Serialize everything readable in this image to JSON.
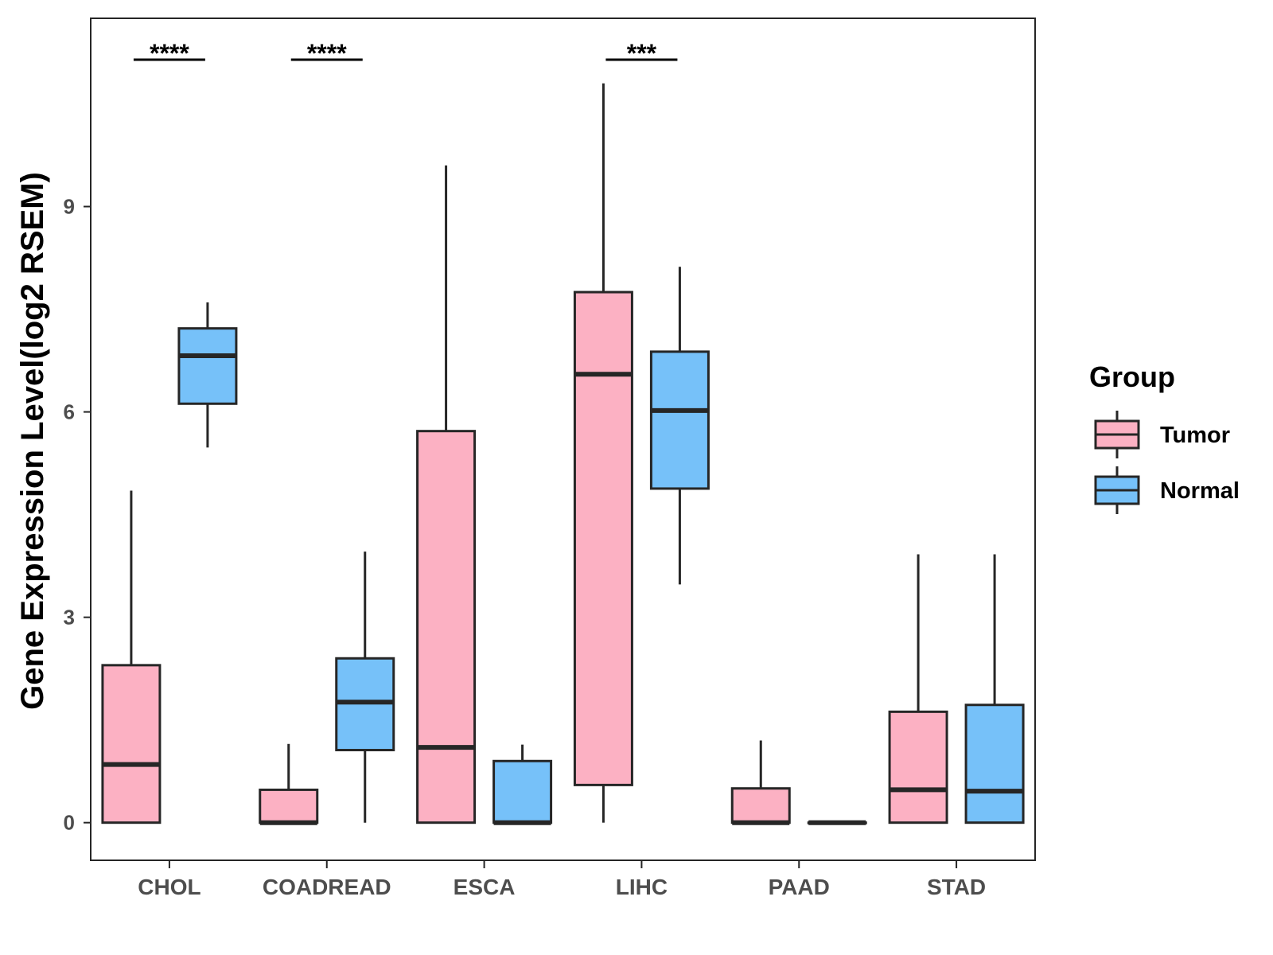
{
  "chart_data": {
    "type": "boxplot",
    "title": "",
    "xlabel": "",
    "ylabel": "Gene Expression Level(log2 RSEM)",
    "ylim": [
      -0.55,
      11.75
    ],
    "yticks": [
      0,
      3,
      6,
      9
    ],
    "grid": false,
    "categories": [
      "CHOL",
      "COADREAD",
      "ESCA",
      "LIHC",
      "PAAD",
      "STAD"
    ],
    "legend": {
      "title": "Group",
      "position": "right",
      "entries": [
        "Tumor",
        "Normal"
      ]
    },
    "colors": {
      "Tumor": "#fcb1c3",
      "Normal": "#76c1f9",
      "stroke": "#262626"
    },
    "series": [
      {
        "name": "Tumor",
        "boxes": [
          {
            "min": 0,
            "q1": 0,
            "median": 0.85,
            "q3": 2.3,
            "max": 4.85
          },
          {
            "min": 0,
            "q1": 0,
            "median": 0.0,
            "q3": 0.48,
            "max": 1.15
          },
          {
            "min": 0,
            "q1": 0,
            "median": 1.1,
            "q3": 5.72,
            "max": 9.6
          },
          {
            "min": 0,
            "q1": 0.55,
            "median": 6.55,
            "q3": 7.75,
            "max": 10.8
          },
          {
            "min": 0,
            "q1": 0,
            "median": 0.0,
            "q3": 0.5,
            "max": 1.2
          },
          {
            "min": 0,
            "q1": 0,
            "median": 0.48,
            "q3": 1.62,
            "max": 3.92
          }
        ]
      },
      {
        "name": "Normal",
        "boxes": [
          {
            "min": 5.48,
            "q1": 6.12,
            "median": 6.82,
            "q3": 7.22,
            "max": 7.6
          },
          {
            "min": 0,
            "q1": 1.06,
            "median": 1.76,
            "q3": 2.4,
            "max": 3.96
          },
          {
            "min": 0,
            "q1": 0,
            "median": 0.0,
            "q3": 0.9,
            "max": 1.14
          },
          {
            "min": 3.48,
            "q1": 4.88,
            "median": 6.02,
            "q3": 6.88,
            "max": 8.12
          },
          {
            "min": 0,
            "q1": 0,
            "median": 0.0,
            "q3": 0.0,
            "max": 0.0
          },
          {
            "min": 0,
            "q1": 0,
            "median": 0.46,
            "q3": 1.72,
            "max": 3.92
          }
        ]
      }
    ],
    "significance": [
      {
        "category": "CHOL",
        "label": "****"
      },
      {
        "category": "COADREAD",
        "label": "****"
      },
      {
        "category": "LIHC",
        "label": "***"
      }
    ]
  }
}
